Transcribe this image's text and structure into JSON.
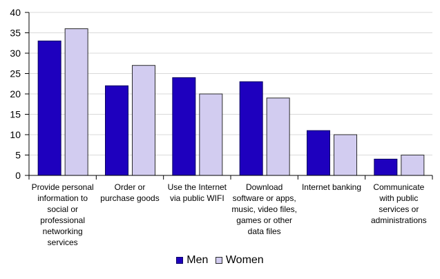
{
  "chart_data": {
    "type": "bar",
    "categories": [
      [
        "Provide personal",
        "information to",
        "social or",
        "professional",
        "networking",
        "services"
      ],
      [
        "Order or",
        "purchase goods"
      ],
      [
        "Use the Internet",
        "via public WIFI"
      ],
      [
        "Download",
        "software or apps,",
        "music, video files,",
        "games or other",
        "data files"
      ],
      [
        "Internet banking"
      ],
      [
        "Communicate",
        "with public",
        "services or",
        "administrations"
      ]
    ],
    "series": [
      {
        "name": "Men",
        "values": [
          33,
          22,
          24,
          23,
          11,
          4
        ],
        "color": "#1e00be",
        "border": "#0a0060"
      },
      {
        "name": "Women",
        "values": [
          36,
          27,
          20,
          19,
          10,
          5
        ],
        "color": "#d2ccf0",
        "border": "#2a2a2a"
      }
    ],
    "ylim": [
      0,
      40
    ],
    "yticks": [
      0,
      5,
      10,
      15,
      20,
      25,
      30,
      35,
      40
    ],
    "grid": true,
    "legend_position": "bottom-center",
    "title": "",
    "xlabel": "",
    "ylabel": ""
  }
}
